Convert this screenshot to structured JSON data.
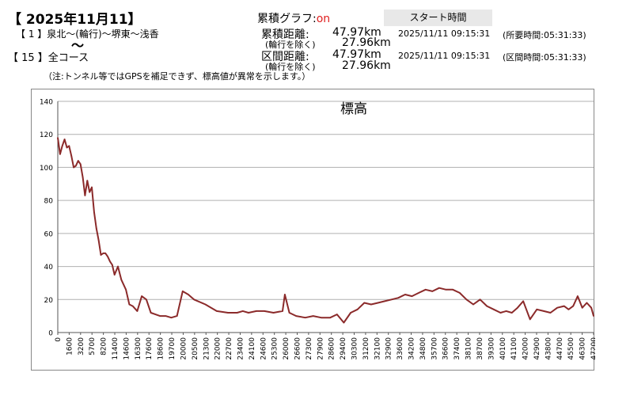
{
  "header": {
    "date_title": "【 2025年11月11】",
    "route_label": "【 1 】泉北～(輪行)～堺東～浅香",
    "wave": "～",
    "course_label": "【 15 】全コース",
    "note": "（注:トンネル等ではGPSを補足できず、標高値が異常を示します。）"
  },
  "graph_toggle": {
    "label": "累積グラフ:",
    "state": "on"
  },
  "start_time": {
    "label": "スタート時間"
  },
  "stats": {
    "cumulative": {
      "label": "累積距離:",
      "distance": "47.97km",
      "sub_label": "(輪行を除く)",
      "sub_distance": "27.96km",
      "datetime": "2025/11/11 09:15:31",
      "elapsed": "(所要時間:05:31:33)"
    },
    "section": {
      "label": "区間距離:",
      "distance": "47.97km",
      "sub_label": "(輪行を除く)",
      "sub_distance": "27.96km",
      "datetime": "2025/11/11 09:15:31",
      "elapsed": "(区間時間:05:31:33)"
    }
  },
  "colors": {
    "line": "#8b2a2a",
    "grid": "#b0b0b0",
    "on": "#e02020"
  },
  "chart_data": {
    "type": "line",
    "title": "標高",
    "xlabel": "",
    "ylabel": "",
    "ylim": [
      0,
      140
    ],
    "yticks": [
      0,
      20,
      40,
      60,
      80,
      100,
      120,
      140
    ],
    "grid": true,
    "xlim": [
      0,
      47200
    ],
    "xtick_labels": [
      "0",
      "1600",
      "3200",
      "5700",
      "8200",
      "11400",
      "14600",
      "16300",
      "17600",
      "18600",
      "19700",
      "20000",
      "20500",
      "21300",
      "22000",
      "22700",
      "23400",
      "24100",
      "24600",
      "25300",
      "26000",
      "26600",
      "27300",
      "27900",
      "28600",
      "29400",
      "30300",
      "31200",
      "32100",
      "32900",
      "33600",
      "34200",
      "34800",
      "35700",
      "36600",
      "37400",
      "38100",
      "38700",
      "39300",
      "40100",
      "41100",
      "42000",
      "42900",
      "43800",
      "44700",
      "45500",
      "46300",
      "47200"
    ],
    "series": [
      {
        "x": [
          0,
          200,
          400,
          600,
          800,
          1000,
          1200,
          1400,
          1600,
          1800,
          2000,
          2200,
          2400,
          2600,
          2800,
          3000,
          3200,
          3400,
          3600,
          3800,
          4000,
          4200,
          4400,
          4600,
          4800,
          5000,
          5300,
          5600,
          6000,
          6300,
          6600,
          7000,
          7400,
          7800,
          8200,
          8600,
          9000,
          9500,
          10000,
          10500,
          11000,
          11500,
          12000,
          13000,
          14000,
          15000,
          15800,
          16300,
          16800,
          17500,
          18200,
          19000,
          19800,
          20000,
          20400,
          21000,
          21800,
          22500,
          23200,
          24000,
          24600,
          25200,
          25800,
          26400,
          27000,
          27600,
          28200,
          28800,
          29400,
          30000,
          30600,
          31200,
          31800,
          32400,
          33000,
          33600,
          34200,
          34800,
          35400,
          36000,
          36600,
          37200,
          37800,
          38400,
          39000,
          39500,
          40000,
          40500,
          41000,
          41600,
          42200,
          42800,
          43400,
          44000,
          44600,
          45000,
          45400,
          45800,
          46200,
          46600,
          47000,
          47200
        ],
        "y": [
          118,
          108,
          113,
          117,
          112,
          113,
          107,
          100,
          101,
          104,
          102,
          94,
          83,
          92,
          85,
          88,
          73,
          63,
          56,
          47,
          48,
          48,
          46,
          43,
          41,
          35,
          40,
          32,
          26,
          17,
          16,
          13,
          22,
          20,
          12,
          11,
          10,
          10,
          9,
          10,
          25,
          23,
          20,
          17,
          13,
          12,
          12,
          13,
          12,
          13,
          13,
          12,
          13,
          23,
          12,
          10,
          9,
          10,
          9,
          9,
          11,
          6,
          12,
          14,
          18,
          17,
          18,
          19,
          20,
          21,
          23,
          22,
          24,
          26,
          25,
          27,
          26,
          26,
          24,
          20,
          17,
          20,
          16,
          14,
          12,
          13,
          12,
          15,
          19,
          8,
          14,
          13,
          12,
          15,
          16,
          14,
          16,
          22,
          15,
          18,
          15,
          10
        ]
      }
    ]
  }
}
